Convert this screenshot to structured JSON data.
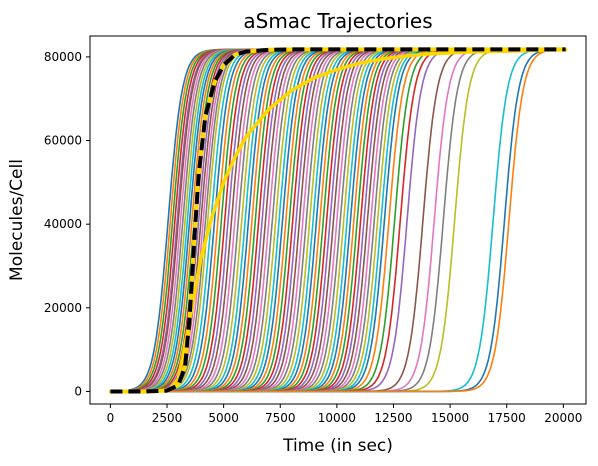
{
  "chart_data": {
    "type": "line",
    "title": "aSmac Trajectories",
    "xlabel": "Time (in sec)",
    "ylabel": "Molecules/Cell",
    "xlim": [
      -900,
      21000
    ],
    "ylim": [
      -3000,
      85000
    ],
    "xticks": [
      0,
      2500,
      5000,
      7500,
      10000,
      12500,
      15000,
      17500,
      20000
    ],
    "yticks": [
      0,
      20000,
      40000,
      60000,
      80000
    ],
    "xtick_labels": [
      "0",
      "2500",
      "5000",
      "7500",
      "10000",
      "12500",
      "15000",
      "17500",
      "20000"
    ],
    "ytick_labels": [
      "0",
      "20000",
      "40000",
      "60000",
      "80000"
    ],
    "plateau": 81800,
    "x_end": 20100,
    "grid": false,
    "legend": "none",
    "trajectory_midpoints": [
      2550,
      2650,
      2750,
      2850,
      2950,
      3000,
      3100,
      3200,
      3300,
      3400,
      3500,
      3600,
      3700,
      3800,
      3900,
      4000,
      4100,
      4200,
      4300,
      4450,
      4600,
      4750,
      4900,
      5050,
      5200,
      5350,
      5500,
      5650,
      5800,
      5950,
      6100,
      6250,
      6400,
      6550,
      6700,
      6850,
      7000,
      7150,
      7300,
      7450,
      7600,
      7750,
      7900,
      8050,
      8200,
      8350,
      8500,
      8650,
      8800,
      8950,
      9100,
      9250,
      9400,
      9550,
      9700,
      9850,
      10000,
      10150,
      10300,
      10450,
      10600,
      10750,
      10900,
      11050,
      11200,
      11350,
      11500,
      11650,
      11800,
      11950,
      12100,
      12300,
      12550,
      12800,
      13100,
      13800,
      14300,
      14700,
      15200,
      16900,
      17400,
      17600
    ],
    "mean_curve": {
      "color": "#000000",
      "dash_color": "#ffd700",
      "x": [
        0,
        1500,
        2500,
        3000,
        3300,
        3500,
        3700,
        3900,
        4200,
        4600,
        5000,
        5500,
        6000,
        7000,
        8000,
        20100
      ],
      "y": [
        0,
        0,
        200,
        1500,
        6000,
        18000,
        36000,
        52000,
        66000,
        74000,
        78000,
        80500,
        81300,
        81700,
        81800,
        81800
      ]
    },
    "gold_curve": {
      "color": "#ffd700",
      "x": [
        0,
        2000,
        2600,
        3000,
        3500,
        4000,
        4500,
        5000,
        5500,
        6000,
        7000,
        8000,
        9000,
        10000,
        11000,
        12000,
        13000,
        14000,
        16000,
        20100
      ],
      "y": [
        0,
        0,
        500,
        3000,
        17000,
        32000,
        42000,
        50000,
        56000,
        61000,
        67500,
        72000,
        75000,
        77000,
        78500,
        79500,
        80200,
        80700,
        81200,
        81700
      ]
    },
    "palette": [
      "#1f77b4",
      "#ff7f0e",
      "#2ca02c",
      "#d62728",
      "#9467bd",
      "#8c564b",
      "#e377c2",
      "#7f7f7f",
      "#bcbd22",
      "#17becf"
    ]
  }
}
